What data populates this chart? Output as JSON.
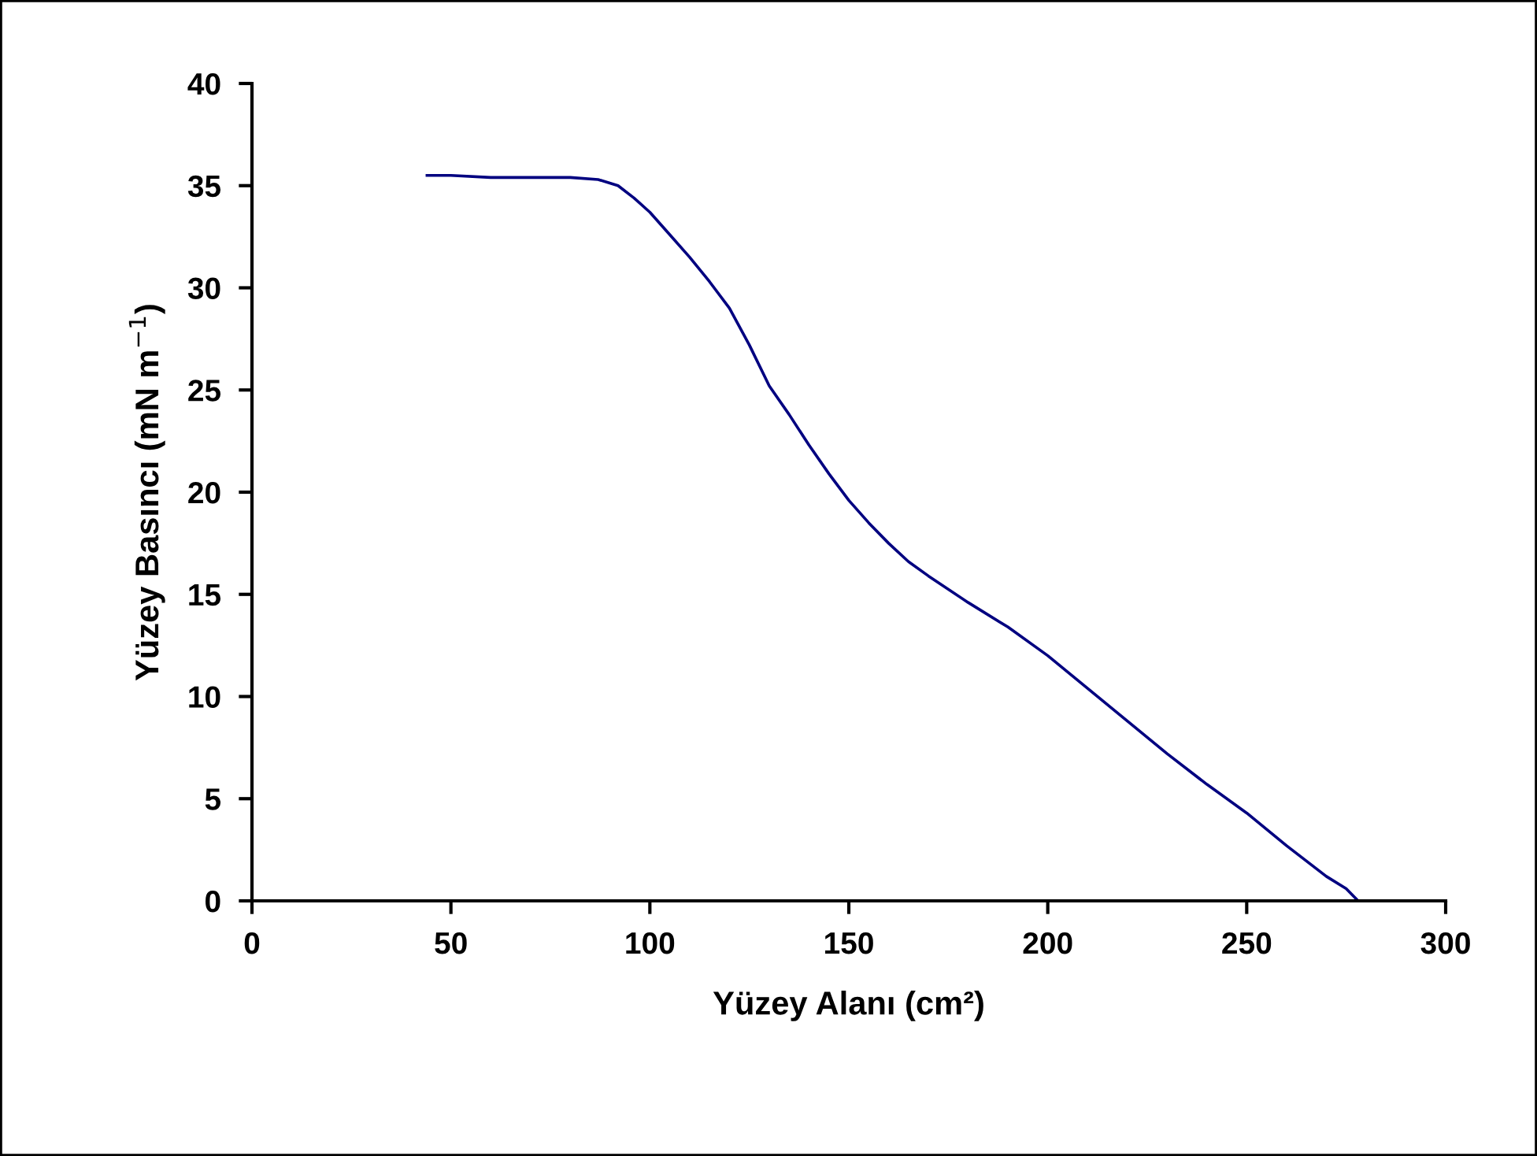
{
  "chart_data": {
    "type": "line",
    "xlabel": "Yüzey Alanı (cm²)",
    "ylabel": "Yüzey Basıncı (mN m$^{−1}$)",
    "x": [
      44,
      50,
      60,
      70,
      80,
      87,
      92,
      96,
      100,
      105,
      110,
      115,
      120,
      125,
      130,
      135,
      140,
      145,
      150,
      155,
      160,
      165,
      170,
      180,
      190,
      200,
      210,
      220,
      230,
      240,
      250,
      260,
      270,
      275,
      278
    ],
    "series": [
      {
        "color": "#000080",
        "values": [
          35.5,
          35.5,
          35.4,
          35.4,
          35.4,
          35.3,
          35.0,
          34.4,
          33.7,
          32.6,
          31.5,
          30.3,
          29.0,
          27.2,
          25.2,
          23.8,
          22.3,
          20.9,
          19.6,
          18.5,
          17.5,
          16.6,
          15.9,
          14.6,
          13.4,
          12.0,
          10.4,
          8.8,
          7.2,
          5.7,
          4.3,
          2.7,
          1.2,
          0.6,
          0
        ]
      }
    ],
    "xlim": [
      0,
      300
    ],
    "xticks": [
      0,
      50,
      100,
      150,
      200,
      250,
      300
    ],
    "ylim": [
      0,
      40
    ],
    "yticks": [
      0,
      5,
      10,
      15,
      20,
      25,
      30,
      35,
      40
    ],
    "grid": false,
    "legend": false,
    "marker": "none",
    "line_style": "solid"
  }
}
